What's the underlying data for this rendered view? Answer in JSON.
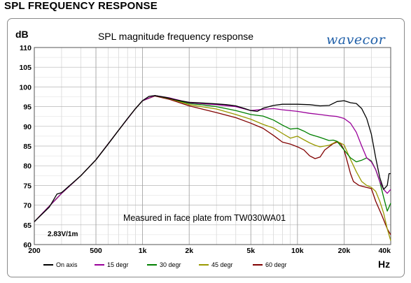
{
  "page_title": "SPL FREQUENCY RESPONSE",
  "logo_text": "wavecor",
  "colors": {
    "on_axis": "#000000",
    "deg15": "#990099",
    "deg30": "#008000",
    "deg45": "#999900",
    "deg60": "#800000",
    "grid": "#cccccc",
    "logo": "#1f5fa8"
  },
  "chart_data": {
    "type": "line",
    "title": "SPL magnitude frequency response",
    "ylabel": "dB",
    "xlabel": "Hz",
    "x_scale": "log",
    "xlim": [
      200,
      40000
    ],
    "ylim": [
      60,
      110
    ],
    "grid": true,
    "legend_position": "bottom",
    "y_ticks": [
      60,
      65,
      70,
      75,
      80,
      85,
      90,
      95,
      100,
      105,
      110
    ],
    "x_ticks": [
      {
        "value": 200,
        "label": "200"
      },
      {
        "value": 500,
        "label": "500"
      },
      {
        "value": 1000,
        "label": "1k"
      },
      {
        "value": 2000,
        "label": "2k"
      },
      {
        "value": 5000,
        "label": "5k"
      },
      {
        "value": 10000,
        "label": "10k"
      },
      {
        "value": 20000,
        "label": "20k"
      },
      {
        "value": 40000,
        "label": "40k"
      }
    ],
    "annotations": [
      {
        "text": "Measured in face plate from TW030WA01"
      },
      {
        "text": "2.83V/1m"
      }
    ],
    "series": [
      {
        "name": "On axis",
        "color": "#000000",
        "points": [
          [
            200,
            65.8
          ],
          [
            250,
            69.5
          ],
          [
            280,
            72.8
          ],
          [
            300,
            73.2
          ],
          [
            400,
            77.5
          ],
          [
            500,
            81.5
          ],
          [
            600,
            85.5
          ],
          [
            700,
            89
          ],
          [
            800,
            92
          ],
          [
            900,
            94.5
          ],
          [
            1000,
            96.5
          ],
          [
            1100,
            97.6
          ],
          [
            1200,
            97.8
          ],
          [
            1400,
            97.4
          ],
          [
            1600,
            96.8
          ],
          [
            1800,
            96.4
          ],
          [
            2000,
            96.1
          ],
          [
            2500,
            95.9
          ],
          [
            3000,
            95.7
          ],
          [
            3500,
            95.5
          ],
          [
            4000,
            95.2
          ],
          [
            4500,
            94.6
          ],
          [
            5000,
            94
          ],
          [
            5500,
            93.8
          ],
          [
            6000,
            94.6
          ],
          [
            7000,
            95.3
          ],
          [
            8000,
            95.6
          ],
          [
            10000,
            95.6
          ],
          [
            12000,
            95.5
          ],
          [
            14000,
            95.2
          ],
          [
            16000,
            95.3
          ],
          [
            18000,
            96.3
          ],
          [
            20000,
            96.5
          ],
          [
            22000,
            96
          ],
          [
            24000,
            95.8
          ],
          [
            26000,
            94.5
          ],
          [
            28000,
            92
          ],
          [
            30000,
            88
          ],
          [
            32000,
            82
          ],
          [
            34000,
            77
          ],
          [
            36000,
            74
          ],
          [
            38000,
            75
          ],
          [
            39000,
            78
          ],
          [
            40000,
            78
          ]
        ]
      },
      {
        "name": "15 degr",
        "color": "#990099",
        "points": [
          [
            200,
            65.8
          ],
          [
            300,
            73
          ],
          [
            400,
            77.5
          ],
          [
            500,
            81.5
          ],
          [
            700,
            89
          ],
          [
            900,
            94.5
          ],
          [
            1000,
            96.5
          ],
          [
            1200,
            97.8
          ],
          [
            1500,
            97.2
          ],
          [
            2000,
            96
          ],
          [
            3000,
            95.5
          ],
          [
            4000,
            95
          ],
          [
            5000,
            94
          ],
          [
            6000,
            94.3
          ],
          [
            7000,
            94.5
          ],
          [
            8000,
            94.2
          ],
          [
            10000,
            93.8
          ],
          [
            12000,
            93.3
          ],
          [
            14000,
            93
          ],
          [
            16000,
            92.7
          ],
          [
            18000,
            92.5
          ],
          [
            20000,
            92
          ],
          [
            22000,
            90.8
          ],
          [
            24000,
            88.5
          ],
          [
            26000,
            85
          ],
          [
            28000,
            82
          ],
          [
            30000,
            81
          ],
          [
            32000,
            79
          ],
          [
            34000,
            76
          ],
          [
            36000,
            74
          ],
          [
            38000,
            73
          ],
          [
            40000,
            74
          ]
        ]
      },
      {
        "name": "30 degr",
        "color": "#008000",
        "points": [
          [
            200,
            65.8
          ],
          [
            300,
            73
          ],
          [
            400,
            77.5
          ],
          [
            500,
            81.5
          ],
          [
            700,
            89
          ],
          [
            900,
            94.5
          ],
          [
            1000,
            96.5
          ],
          [
            1200,
            97.8
          ],
          [
            1500,
            97.1
          ],
          [
            2000,
            95.8
          ],
          [
            2500,
            95.4
          ],
          [
            3000,
            95
          ],
          [
            4000,
            94
          ],
          [
            5000,
            93
          ],
          [
            6000,
            92.6
          ],
          [
            7000,
            91.6
          ],
          [
            8000,
            90.3
          ],
          [
            9000,
            89.3
          ],
          [
            10000,
            89.5
          ],
          [
            11000,
            88.8
          ],
          [
            12000,
            88
          ],
          [
            14000,
            87.2
          ],
          [
            16000,
            86.4
          ],
          [
            17000,
            86.5
          ],
          [
            18000,
            86.2
          ],
          [
            20000,
            84
          ],
          [
            22000,
            82
          ],
          [
            24000,
            81
          ],
          [
            26000,
            81.4
          ],
          [
            28000,
            82
          ],
          [
            30000,
            81.2
          ],
          [
            32000,
            79
          ],
          [
            34000,
            76
          ],
          [
            36000,
            72
          ],
          [
            38000,
            68.5
          ],
          [
            40000,
            70.5
          ]
        ]
      },
      {
        "name": "45 degr",
        "color": "#999900",
        "points": [
          [
            200,
            65.8
          ],
          [
            300,
            73
          ],
          [
            400,
            77.5
          ],
          [
            500,
            81.5
          ],
          [
            700,
            89
          ],
          [
            900,
            94.5
          ],
          [
            1000,
            96.5
          ],
          [
            1200,
            97.8
          ],
          [
            1500,
            97
          ],
          [
            2000,
            95.5
          ],
          [
            3000,
            94.4
          ],
          [
            4000,
            93
          ],
          [
            5000,
            91.8
          ],
          [
            6000,
            90.5
          ],
          [
            7000,
            89.6
          ],
          [
            8000,
            88.2
          ],
          [
            9000,
            87
          ],
          [
            10000,
            87.5
          ],
          [
            11000,
            86.6
          ],
          [
            12000,
            85.8
          ],
          [
            13000,
            85.2
          ],
          [
            14000,
            84.8
          ],
          [
            16000,
            85.2
          ],
          [
            18000,
            86.2
          ],
          [
            20000,
            85.3
          ],
          [
            22000,
            81.6
          ],
          [
            24000,
            78.5
          ],
          [
            26000,
            76
          ],
          [
            28000,
            75
          ],
          [
            30000,
            74.5
          ],
          [
            32000,
            73.5
          ],
          [
            34000,
            71
          ],
          [
            36000,
            68
          ],
          [
            38000,
            64
          ],
          [
            40000,
            61
          ]
        ]
      },
      {
        "name": "60 degr",
        "color": "#800000",
        "points": [
          [
            200,
            65.8
          ],
          [
            300,
            73
          ],
          [
            400,
            77.5
          ],
          [
            500,
            81.5
          ],
          [
            700,
            89
          ],
          [
            900,
            94.5
          ],
          [
            1000,
            96.5
          ],
          [
            1200,
            97.7
          ],
          [
            1500,
            96.8
          ],
          [
            2000,
            95.2
          ],
          [
            3000,
            93.5
          ],
          [
            4000,
            92.2
          ],
          [
            5000,
            90.8
          ],
          [
            6000,
            89.5
          ],
          [
            7000,
            87.7
          ],
          [
            8000,
            86
          ],
          [
            9000,
            85.5
          ],
          [
            10000,
            84.8
          ],
          [
            11000,
            84
          ],
          [
            12000,
            82.5
          ],
          [
            13000,
            81.8
          ],
          [
            14000,
            82.2
          ],
          [
            15000,
            84
          ],
          [
            17000,
            85.6
          ],
          [
            18000,
            86
          ],
          [
            19000,
            85.6
          ],
          [
            20000,
            84
          ],
          [
            21000,
            81
          ],
          [
            22000,
            78
          ],
          [
            23000,
            76
          ],
          [
            25000,
            75
          ],
          [
            28000,
            74.5
          ],
          [
            30000,
            74.2
          ],
          [
            32000,
            71
          ],
          [
            35000,
            67.5
          ],
          [
            38000,
            64
          ],
          [
            40000,
            62.5
          ]
        ]
      }
    ]
  }
}
